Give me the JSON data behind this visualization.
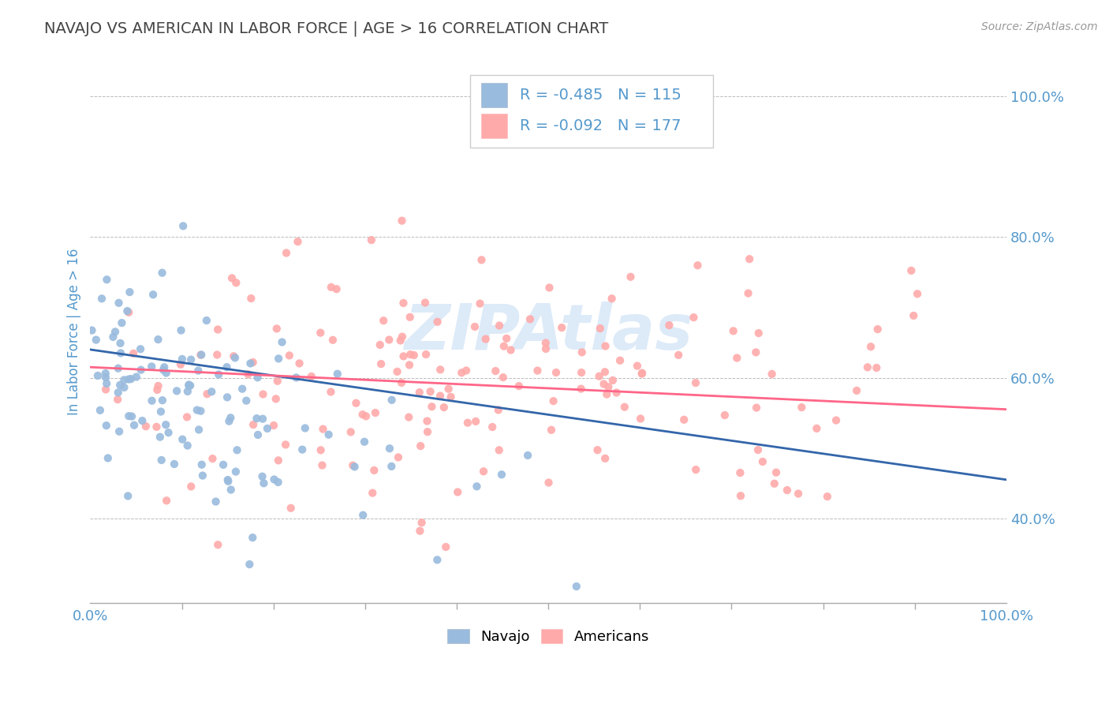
{
  "title": "NAVAJO VS AMERICAN IN LABOR FORCE | AGE > 16 CORRELATION CHART",
  "source_text": "Source: ZipAtlas.com",
  "ylabel": "In Labor Force | Age > 16",
  "watermark": "ZIPAtlas",
  "navajo_R": -0.485,
  "navajo_N": 115,
  "american_R": -0.092,
  "american_N": 177,
  "navajo_color": "#99BBDD",
  "american_color": "#FFAAAA",
  "navajo_line_color": "#3366AA",
  "american_line_color": "#FF6688",
  "background_color": "#FFFFFF",
  "grid_color": "#BBBBBB",
  "title_color": "#444444",
  "axis_label_color": "#5599CC",
  "legend_text_color": "#5599CC",
  "xlim": [
    0.0,
    1.0
  ],
  "ylim": [
    0.28,
    1.05
  ],
  "yticks": [
    0.4,
    0.6,
    0.8,
    1.0
  ],
  "ytick_labels": [
    "40.0%",
    "60.0%",
    "80.0%",
    "100.0%"
  ],
  "xtick_labels": [
    "0.0%",
    "100.0%"
  ],
  "nav_trend_x0": 0.64,
  "nav_trend_x1": 0.455,
  "am_trend_x0": 0.615,
  "am_trend_x1": 0.555
}
